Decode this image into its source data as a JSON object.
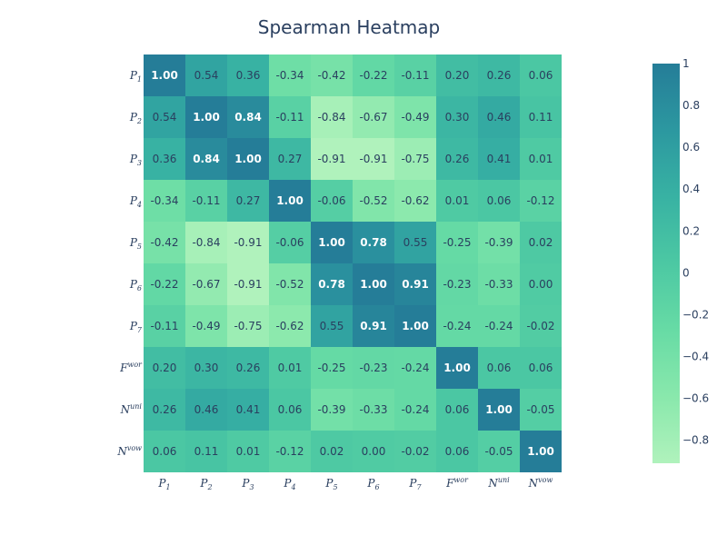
{
  "chart_data": {
    "type": "heatmap",
    "title": "Spearman Heatmap",
    "labels": [
      "P1",
      "P2",
      "P3",
      "P4",
      "P5",
      "P6",
      "P7",
      "Fwor",
      "Nuni",
      "Nvow"
    ],
    "label_parts": [
      {
        "base": "P",
        "sub": "1"
      },
      {
        "base": "P",
        "sub": "2"
      },
      {
        "base": "P",
        "sub": "3"
      },
      {
        "base": "P",
        "sub": "4"
      },
      {
        "base": "P",
        "sub": "5"
      },
      {
        "base": "P",
        "sub": "6"
      },
      {
        "base": "P",
        "sub": "7"
      },
      {
        "base": "F",
        "sup": "wor"
      },
      {
        "base": "N",
        "sup": "uni"
      },
      {
        "base": "N",
        "sup": "vow"
      }
    ],
    "values": [
      [
        1.0,
        0.54,
        0.36,
        -0.34,
        -0.42,
        -0.22,
        -0.11,
        0.2,
        0.26,
        0.06
      ],
      [
        0.54,
        1.0,
        0.84,
        -0.11,
        -0.84,
        -0.67,
        -0.49,
        0.3,
        0.46,
        0.11
      ],
      [
        0.36,
        0.84,
        1.0,
        0.27,
        -0.91,
        -0.91,
        -0.75,
        0.26,
        0.41,
        0.01
      ],
      [
        -0.34,
        -0.11,
        0.27,
        1.0,
        -0.06,
        -0.52,
        -0.62,
        0.01,
        0.06,
        -0.12
      ],
      [
        -0.42,
        -0.84,
        -0.91,
        -0.06,
        1.0,
        0.78,
        0.55,
        -0.25,
        -0.39,
        0.02
      ],
      [
        -0.22,
        -0.67,
        -0.91,
        -0.52,
        0.78,
        1.0,
        0.91,
        -0.23,
        -0.33,
        0.0
      ],
      [
        -0.11,
        -0.49,
        -0.75,
        -0.62,
        0.55,
        0.91,
        1.0,
        -0.24,
        -0.24,
        -0.02
      ],
      [
        0.2,
        0.3,
        0.26,
        0.01,
        -0.25,
        -0.23,
        -0.24,
        1.0,
        0.06,
        0.06
      ],
      [
        0.26,
        0.46,
        0.41,
        0.06,
        -0.39,
        -0.33,
        -0.24,
        0.06,
        1.0,
        -0.05
      ],
      [
        0.06,
        0.11,
        0.01,
        -0.12,
        0.02,
        0.0,
        -0.02,
        0.06,
        -0.05,
        1.0
      ]
    ],
    "zrange": [
      -0.91,
      1.0
    ],
    "colorscale": [
      "#b0f2bc",
      "#89e8ac",
      "#67dba5",
      "#4cc8a3",
      "#38b2a3",
      "#2c98a0",
      "#257d98"
    ],
    "colorbar_ticks": [
      1,
      0.8,
      0.6,
      0.4,
      0.2,
      0,
      -0.2,
      -0.4,
      -0.6,
      -0.8
    ],
    "colorbar_tick_labels": [
      "1",
      "0.8",
      "0.6",
      "0.4",
      "0.2",
      "0",
      "−0.2",
      "−0.4",
      "−0.6",
      "−0.8"
    ],
    "label_color_dark": "#2a3f5f",
    "label_color_light": "#ffffff",
    "grid": false,
    "legend": "colorbar-right"
  }
}
